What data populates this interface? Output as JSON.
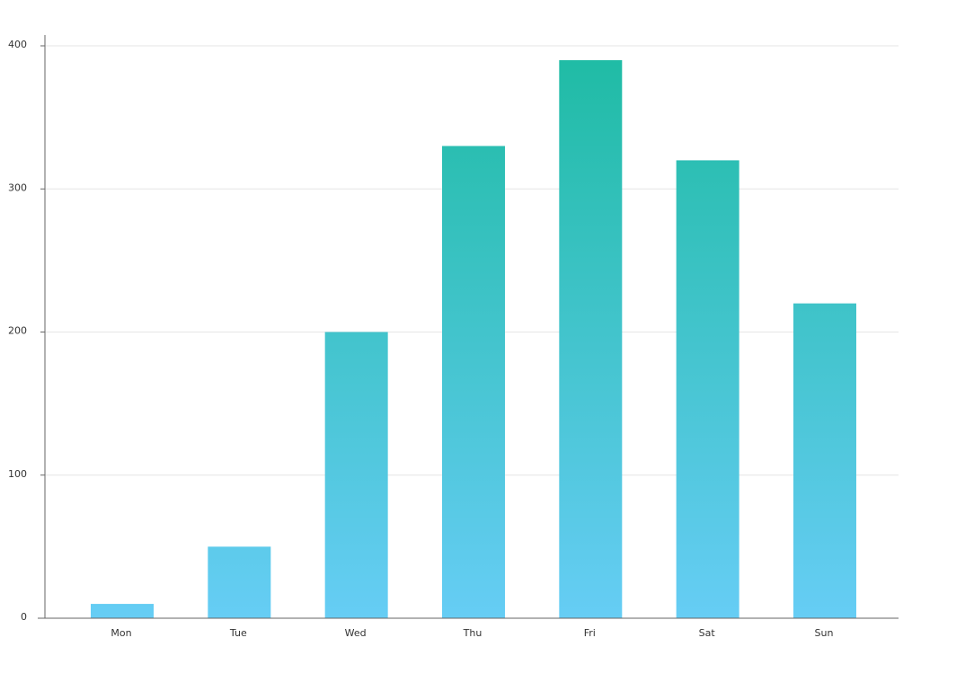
{
  "colors": {
    "bar_top": "#1ebba3",
    "bar_bottom": "#66cdf5",
    "axis": "#666666",
    "grid": "#e6e6e6",
    "text": "#333333"
  },
  "chart_data": {
    "type": "bar",
    "title": "",
    "xlabel": "",
    "ylabel": "",
    "categories": [
      "Mon",
      "Tue",
      "Wed",
      "Thu",
      "Fri",
      "Sat",
      "Sun"
    ],
    "values": [
      10,
      50,
      200,
      330,
      390,
      320,
      220
    ],
    "ylim": [
      0,
      400
    ],
    "y_ticks": [
      0,
      100,
      200,
      300,
      400
    ],
    "grid": true,
    "legend": "none"
  }
}
